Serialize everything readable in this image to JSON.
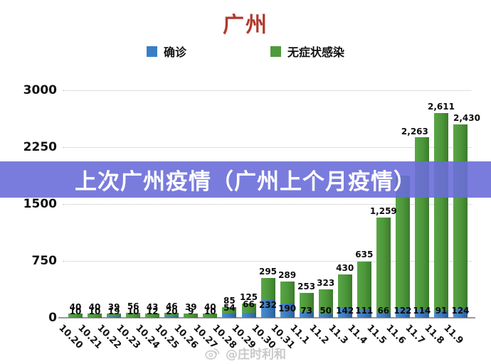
{
  "title": {
    "text": "广州",
    "color": "#b0392e"
  },
  "legend": {
    "items": [
      {
        "label": "确诊",
        "color": "#3a7ec6"
      },
      {
        "label": "无症状感染",
        "color": "#4f9a3c"
      }
    ]
  },
  "overlay_banner": {
    "text": "上次广州疫情（广州上个月疫情）",
    "background_color": "#6a6ed8",
    "text_color": "#ffffff"
  },
  "watermark": {
    "icon": "weibo-logo-icon",
    "text": "@庄时利和"
  },
  "y_axis": {
    "tick_labels": [
      "3000",
      "2250",
      "1500",
      "750",
      "0"
    ]
  },
  "chart_data": {
    "type": "bar",
    "stacked": true,
    "title": "广州",
    "xlabel": "",
    "ylabel": "",
    "ylim": [
      0,
      3000
    ],
    "grid": true,
    "legend_position": "top",
    "categories": [
      "10.20",
      "10.21",
      "10.22",
      "10.23",
      "10.24",
      "10.25",
      "10.26",
      "10.27",
      "10.28",
      "10.29",
      "10.30",
      "10.31",
      "11.1",
      "11.2",
      "11.3",
      "11.4",
      "11.5",
      "11.6",
      "11.7",
      "11.8",
      "11.9"
    ],
    "series": [
      {
        "name": "确诊",
        "color": "#3a7ec6",
        "values": [
          10,
          10,
          19,
          10,
          12,
          20,
          9,
          10,
          54,
          66,
          232,
          190,
          73,
          50,
          142,
          111,
          66,
          122,
          114,
          91,
          124
        ],
        "labels": [
          "10",
          "10",
          "19",
          "10",
          "12",
          "20",
          "9",
          "10",
          "54",
          "66",
          "232",
          "190",
          "73",
          "50",
          "142",
          "111",
          "66",
          "122",
          "114",
          "91",
          "124"
        ]
      },
      {
        "name": "无症状感染",
        "color": "#4f9a3c",
        "values": [
          40,
          40,
          39,
          56,
          43,
          46,
          39,
          40,
          85,
          125,
          295,
          289,
          253,
          323,
          430,
          635,
          1259,
          1750,
          2263,
          2611,
          2430
        ],
        "labels": [
          "40",
          "40",
          "39",
          "56",
          "43",
          "46",
          "39",
          "40",
          "85",
          "125",
          "295",
          "289",
          "253",
          "323",
          "430",
          "635",
          "1,259",
          "",
          "2,263",
          "2,611",
          "2,430"
        ]
      }
    ]
  }
}
